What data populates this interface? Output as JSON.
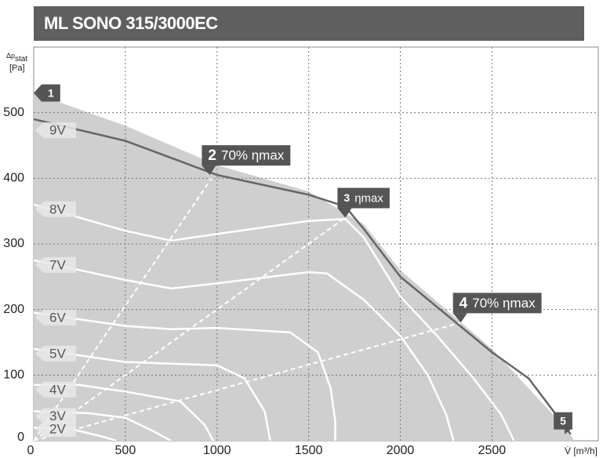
{
  "chart_data": {
    "type": "line",
    "title": "ML SONO 315/3000EC",
    "y_label": {
      "main": "Δp",
      "sub": "stat",
      "unit": "[Pa]"
    },
    "x_label": "V̇ [m³/h]",
    "xlim": [
      0,
      3080
    ],
    "ylim": [
      0,
      600
    ],
    "xticks": [
      0,
      500,
      1000,
      1500,
      2000,
      2500
    ],
    "yticks": [
      0,
      100,
      200,
      300,
      400,
      500
    ],
    "grid": true,
    "area": {
      "color": "#cfcfcf",
      "x": [
        0,
        500,
        1000,
        1500,
        1800,
        2000,
        2500,
        2900,
        2950
      ],
      "values": [
        530,
        480,
        420,
        380,
        330,
        260,
        140,
        20,
        0
      ]
    },
    "series": [
      {
        "name": "9V",
        "color": "#666666",
        "x": [
          0,
          500,
          1000,
          1500,
          1700,
          1800,
          2000,
          2500,
          2700,
          2930
        ],
        "values": [
          490,
          457,
          405,
          375,
          357,
          323,
          250,
          135,
          95,
          10
        ]
      },
      {
        "name": "8V",
        "color": "#ffffff",
        "x": [
          0,
          500,
          750,
          1000,
          1500,
          1700,
          1800,
          1900,
          2000,
          2200,
          2400,
          2550,
          2620
        ],
        "values": [
          360,
          320,
          305,
          315,
          335,
          338,
          310,
          265,
          220,
          160,
          95,
          40,
          0
        ]
      },
      {
        "name": "7V",
        "color": "#ffffff",
        "x": [
          0,
          500,
          750,
          1000,
          1500,
          1600,
          1800,
          2000,
          2150,
          2250,
          2290
        ],
        "values": [
          275,
          245,
          232,
          240,
          257,
          255,
          215,
          160,
          100,
          40,
          0
        ]
      },
      {
        "name": "6V",
        "color": "#ffffff",
        "x": [
          0,
          500,
          750,
          1000,
          1400,
          1550,
          1620,
          1645,
          1645
        ],
        "values": [
          195,
          175,
          170,
          172,
          165,
          135,
          80,
          30,
          0
        ]
      },
      {
        "name": "5V",
        "color": "#ffffff",
        "x": [
          0,
          500,
          1000,
          1150,
          1260,
          1290
        ],
        "values": [
          140,
          120,
          115,
          95,
          45,
          0
        ]
      },
      {
        "name": "4V",
        "color": "#ffffff",
        "x": [
          0,
          250,
          500,
          800,
          930,
          980
        ],
        "values": [
          85,
          85,
          75,
          60,
          25,
          0
        ]
      },
      {
        "name": "3V",
        "color": "#ffffff",
        "x": [
          0,
          300,
          500,
          650,
          750
        ],
        "values": [
          45,
          42,
          35,
          15,
          0
        ]
      },
      {
        "name": "2V",
        "color": "#ffffff",
        "x": [
          0,
          200,
          380,
          450
        ],
        "values": [
          20,
          18,
          6,
          0
        ]
      }
    ],
    "efficiency_lines": [
      {
        "x": [
          0,
          970
        ],
        "values": [
          0,
          400
        ]
      },
      {
        "x": [
          0,
          1700
        ],
        "values": [
          0,
          340
        ]
      },
      {
        "x": [
          0,
          2330
        ],
        "values": [
          0,
          180
        ]
      }
    ],
    "annotations": [
      {
        "number": "1",
        "x": 0,
        "y": 530
      },
      {
        "number": "2",
        "text": "70% ηmax",
        "x": 960,
        "y": 405
      },
      {
        "number": "3",
        "text": "ηmax",
        "x": 1700,
        "y": 340
      },
      {
        "number": "4",
        "text": "70% ηmax",
        "x": 2330,
        "y": 180
      },
      {
        "number": "5",
        "x": 2930,
        "y": 10
      }
    ]
  }
}
